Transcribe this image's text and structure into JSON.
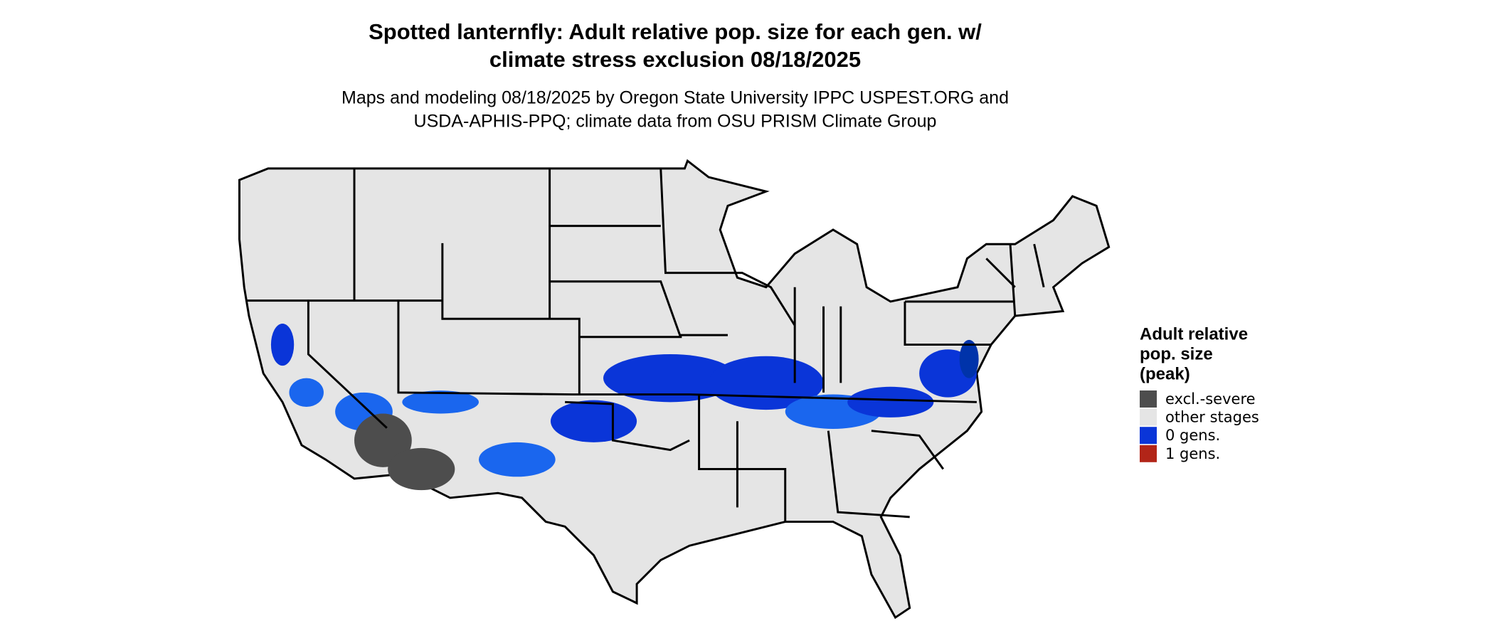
{
  "header": {
    "title_lines": [
      "Spotted lanternfly: Adult relative pop. size for each gen. w/",
      "climate stress exclusion 08/18/2025"
    ],
    "subtitle_lines": [
      "Maps and modeling 08/18/2025 by Oregon State University IPPC USPEST.ORG and",
      "USDA-APHIS-PPQ; climate data from OSU PRISM Climate Group"
    ]
  },
  "legend": {
    "title_lines": [
      "Adult relative",
      "pop. size",
      "(peak)"
    ],
    "items": [
      {
        "label": "excl.-severe",
        "color": "#4d4d4d"
      },
      {
        "label": "other stages",
        "color": "#e5e5e5"
      },
      {
        "label": "0 gens.",
        "color": "#0a35d8"
      },
      {
        "label": "1 gens.",
        "color": "#b22518"
      }
    ]
  }
}
